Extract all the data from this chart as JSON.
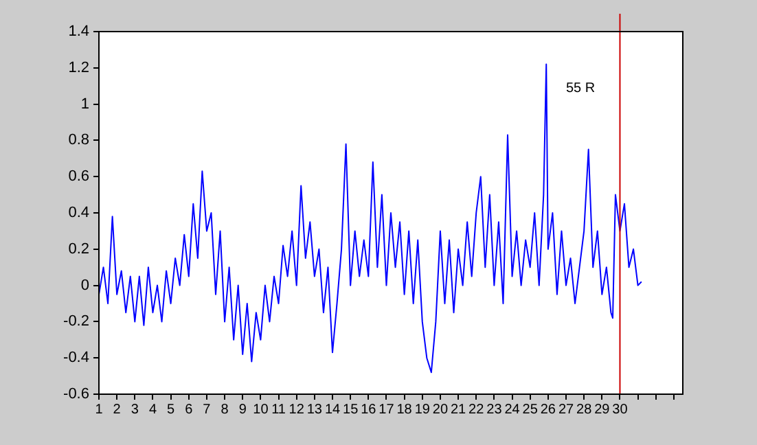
{
  "chart_data": {
    "type": "line",
    "x": [
      1.0,
      1.25,
      1.5,
      1.75,
      2.0,
      2.25,
      2.5,
      2.75,
      3.0,
      3.25,
      3.5,
      3.75,
      4.0,
      4.25,
      4.5,
      4.75,
      5.0,
      5.25,
      5.5,
      5.75,
      6.0,
      6.25,
      6.5,
      6.75,
      7.0,
      7.25,
      7.5,
      7.75,
      8.0,
      8.25,
      8.5,
      8.75,
      9.0,
      9.25,
      9.5,
      9.75,
      10.0,
      10.25,
      10.5,
      10.75,
      11.0,
      11.25,
      11.5,
      11.75,
      12.0,
      12.25,
      12.5,
      12.75,
      13.0,
      13.25,
      13.5,
      13.75,
      14.0,
      14.25,
      14.5,
      14.75,
      15.0,
      15.25,
      15.5,
      15.75,
      16.0,
      16.25,
      16.5,
      16.75,
      17.0,
      17.25,
      17.5,
      17.75,
      18.0,
      18.25,
      18.5,
      18.75,
      19.0,
      19.25,
      19.5,
      19.75,
      20.0,
      20.25,
      20.5,
      20.75,
      21.0,
      21.25,
      21.5,
      21.75,
      22.0,
      22.25,
      22.5,
      22.75,
      23.0,
      23.25,
      23.5,
      23.75,
      24.0,
      24.25,
      24.5,
      24.75,
      25.0,
      25.25,
      25.5,
      25.75,
      25.9,
      26.0,
      26.25,
      26.5,
      26.75,
      27.0,
      27.25,
      27.5,
      27.75,
      28.0,
      28.25,
      28.5,
      28.75,
      29.0,
      29.25,
      29.5,
      29.6,
      29.75,
      30.0,
      30.25,
      30.5,
      30.75,
      31.0,
      31.2
    ],
    "series": [
      {
        "color": "#0000ff",
        "values": [
          -0.05,
          0.1,
          -0.1,
          0.38,
          -0.05,
          0.08,
          -0.15,
          0.05,
          -0.2,
          0.05,
          -0.22,
          0.1,
          -0.15,
          0.0,
          -0.2,
          0.08,
          -0.1,
          0.15,
          0.0,
          0.28,
          0.05,
          0.45,
          0.15,
          0.63,
          0.3,
          0.4,
          -0.05,
          0.3,
          -0.2,
          0.1,
          -0.3,
          0.0,
          -0.38,
          -0.1,
          -0.42,
          -0.15,
          -0.3,
          0.0,
          -0.2,
          0.05,
          -0.1,
          0.22,
          0.05,
          0.3,
          0.0,
          0.55,
          0.15,
          0.35,
          0.05,
          0.2,
          -0.15,
          0.1,
          -0.37,
          -0.1,
          0.2,
          0.78,
          0.0,
          0.3,
          0.05,
          0.25,
          0.05,
          0.68,
          0.1,
          0.5,
          0.0,
          0.4,
          0.1,
          0.35,
          -0.05,
          0.3,
          -0.1,
          0.25,
          -0.2,
          -0.4,
          -0.48,
          -0.2,
          0.3,
          -0.1,
          0.25,
          -0.15,
          0.2,
          0.0,
          0.35,
          0.05,
          0.4,
          0.6,
          0.1,
          0.5,
          0.0,
          0.35,
          -0.1,
          0.83,
          0.05,
          0.3,
          0.0,
          0.25,
          0.1,
          0.4,
          0.0,
          0.5,
          1.22,
          0.2,
          0.4,
          -0.05,
          0.3,
          0.0,
          0.15,
          -0.1,
          0.1,
          0.3,
          0.75,
          0.1,
          0.3,
          -0.05,
          0.1,
          -0.15,
          -0.18,
          0.5,
          0.3,
          0.45,
          0.1,
          0.2,
          0.0,
          0.02
        ]
      }
    ],
    "xlim": [
      1,
      33.5
    ],
    "xticks": [
      1,
      2,
      3,
      4,
      5,
      6,
      7,
      8,
      9,
      10,
      11,
      12,
      13,
      14,
      15,
      16,
      17,
      18,
      19,
      20,
      21,
      22,
      23,
      24,
      25,
      26,
      27,
      28,
      29,
      30,
      {
        "value": 31,
        "label": null
      },
      {
        "value": 32,
        "label": null
      },
      {
        "value": 33,
        "label": null
      }
    ],
    "ylim": [
      -0.6,
      1.4
    ],
    "yticks": [
      -0.6,
      -0.4,
      -0.2,
      0,
      0.2,
      0.4,
      0.6,
      0.8,
      1,
      1.2,
      1.4
    ],
    "ref_lines": [
      {
        "axis": "x",
        "value": 30,
        "color": "#cc0000"
      }
    ],
    "annotations": [
      "55 R"
    ]
  }
}
